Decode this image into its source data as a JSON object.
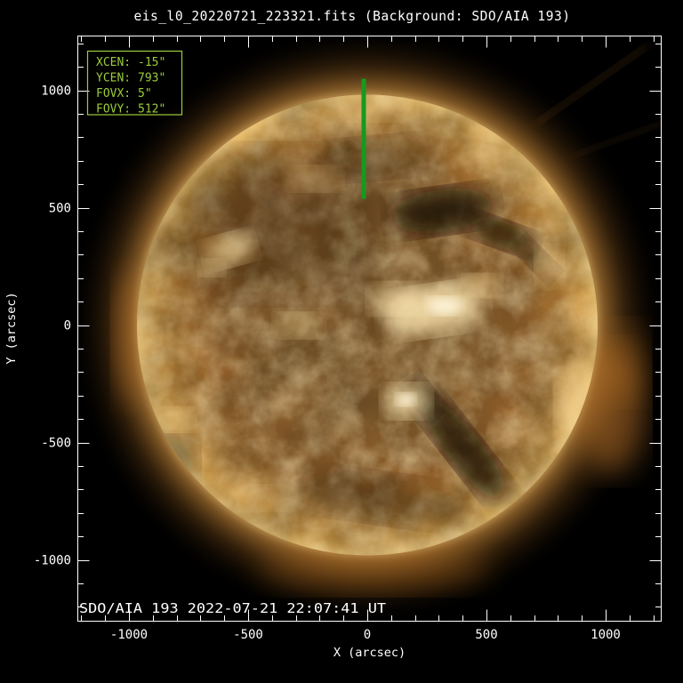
{
  "title": "eis_l0_20220721_223321.fits  (Background: SDO/AIA 193)",
  "caption": "SDO/AIA  193  2022-07-21 22:07:41 UT",
  "info_box": {
    "rows": [
      {
        "label": "XCEN:",
        "value": "-15\""
      },
      {
        "label": "YCEN:",
        "value": "793\""
      },
      {
        "label": "FOVX:",
        "value": "5\""
      },
      {
        "label": "FOVY:",
        "value": "512\""
      }
    ]
  },
  "axes": {
    "x": {
      "label": "X (arcsec)",
      "ticks": [
        "-1000",
        "-500",
        "0",
        "500",
        "1000"
      ]
    },
    "y": {
      "label": "Y (arcsec)",
      "ticks": [
        "1000",
        "500",
        "0",
        "-500",
        "-1000"
      ]
    }
  },
  "chart_data": {
    "type": "heatmap",
    "description": "Full-disk SDO/AIA 193 A EUV image of the Sun (gold/bronze colormap) used as background in the EIS study mapper; bright active regions near disk center and center-right, dark coronal holes north of center and in a lane to the south-east, with a green EIS raster field-of-view bar plotted near the north pole.",
    "title": "eis_l0_20220721_223321.fits  (Background: SDO/AIA 193)",
    "xlabel": "X (arcsec)",
    "ylabel": "Y (arcsec)",
    "xlim": [
      -1228,
      1228
    ],
    "ylim": [
      -1228,
      1228
    ],
    "x_major_ticks": [
      -1000,
      -500,
      0,
      500,
      1000
    ],
    "y_major_ticks": [
      1000,
      500,
      0,
      -500,
      -1000
    ],
    "minor_tick_step": 100,
    "grid": false,
    "solar_disk_radius_arcsec": 960,
    "background_caption": "SDO/AIA  193  2022-07-21 22:07:41 UT",
    "fov_overlay": {
      "xcen_arcsec": -15,
      "ycen_arcsec": 793,
      "fovx_arcsec": 5,
      "fovy_arcsec": 512,
      "color": "#169a1e"
    }
  },
  "colors": {
    "annotation_green": "#9ccc3a",
    "fov_green": "#169a1e",
    "axis_white": "#ffffff",
    "background": "#000000"
  }
}
